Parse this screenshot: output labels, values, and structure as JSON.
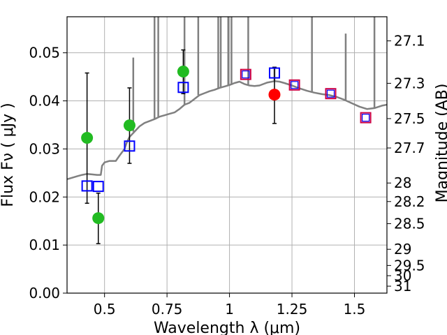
{
  "chart_data": {
    "type": "scatter",
    "xlabel": "Wavelength  λ (μm)",
    "ylabel": "Flux  Fν  ( μJy )",
    "y2label": "Magnitude (AB)",
    "xlim": [
      0.35,
      1.63
    ],
    "ylim": [
      0.0,
      0.0575
    ],
    "grid": true,
    "x_ticks": [
      {
        "value": 0.5,
        "label": "0.5"
      },
      {
        "value": 0.75,
        "label": "0.75"
      },
      {
        "value": 1.0,
        "label": "1"
      },
      {
        "value": 1.25,
        "label": "1.25"
      },
      {
        "value": 1.5,
        "label": "1.5"
      }
    ],
    "y_ticks": [
      {
        "value": 0.0,
        "label": "0.00"
      },
      {
        "value": 0.01,
        "label": "0.01"
      },
      {
        "value": 0.02,
        "label": "0.02"
      },
      {
        "value": 0.03,
        "label": "0.03"
      },
      {
        "value": 0.04,
        "label": "0.04"
      },
      {
        "value": 0.05,
        "label": "0.05"
      }
    ],
    "y2_ticks": [
      {
        "mag": 27.1,
        "label": "27.1"
      },
      {
        "mag": 27.3,
        "label": "27.3"
      },
      {
        "mag": 27.5,
        "label": "27.5"
      },
      {
        "mag": 27.7,
        "label": "27.7"
      },
      {
        "mag": 28.0,
        "label": "28"
      },
      {
        "mag": 28.2,
        "label": "28.2"
      },
      {
        "mag": 28.5,
        "label": "28.5"
      },
      {
        "mag": 29.0,
        "label": "29"
      },
      {
        "mag": 29.5,
        "label": "29.5"
      },
      {
        "mag": 30.0,
        "label": "30"
      },
      {
        "mag": 31.0,
        "label": "31"
      }
    ],
    "series": [
      {
        "kind": "line",
        "color": "#808080",
        "points": [
          [
            0.35,
            0.0237
          ],
          [
            0.37,
            0.024
          ],
          [
            0.39,
            0.0243
          ],
          [
            0.41,
            0.0246
          ],
          [
            0.43,
            0.0248
          ],
          [
            0.45,
            0.0247
          ],
          [
            0.47,
            0.0246
          ],
          [
            0.485,
            0.0246
          ],
          [
            0.49,
            0.0265
          ],
          [
            0.5,
            0.0272
          ],
          [
            0.52,
            0.0275
          ],
          [
            0.545,
            0.0275
          ],
          [
            0.56,
            0.0286
          ],
          [
            0.58,
            0.03
          ],
          [
            0.59,
            0.0315
          ],
          [
            0.6,
            0.0325
          ],
          [
            0.62,
            0.0336
          ],
          [
            0.64,
            0.0347
          ],
          [
            0.66,
            0.0354
          ],
          [
            0.68,
            0.0358
          ],
          [
            0.7,
            0.0362
          ],
          [
            0.72,
            0.0367
          ],
          [
            0.74,
            0.037
          ],
          [
            0.76,
            0.0373
          ],
          [
            0.78,
            0.0376
          ],
          [
            0.8,
            0.0383
          ],
          [
            0.82,
            0.0392
          ],
          [
            0.84,
            0.0396
          ],
          [
            0.86,
            0.0404
          ],
          [
            0.88,
            0.0412
          ],
          [
            0.9,
            0.0416
          ],
          [
            0.92,
            0.042
          ],
          [
            0.94,
            0.0423
          ],
          [
            0.96,
            0.0427
          ],
          [
            0.98,
            0.043
          ],
          [
            1.0,
            0.0433
          ],
          [
            1.02,
            0.0437
          ],
          [
            1.04,
            0.044
          ],
          [
            1.06,
            0.0435
          ],
          [
            1.08,
            0.0432
          ],
          [
            1.1,
            0.0431
          ],
          [
            1.12,
            0.0432
          ],
          [
            1.15,
            0.0438
          ],
          [
            1.18,
            0.0441
          ],
          [
            1.2,
            0.044
          ],
          [
            1.22,
            0.0437
          ],
          [
            1.25,
            0.0432
          ],
          [
            1.28,
            0.0426
          ],
          [
            1.31,
            0.0421
          ],
          [
            1.34,
            0.0417
          ],
          [
            1.37,
            0.0414
          ],
          [
            1.4,
            0.0412
          ],
          [
            1.43,
            0.0408
          ],
          [
            1.46,
            0.0402
          ],
          [
            1.49,
            0.0395
          ],
          [
            1.52,
            0.0388
          ],
          [
            1.55,
            0.0383
          ],
          [
            1.58,
            0.0385
          ],
          [
            1.61,
            0.039
          ],
          [
            1.63,
            0.0392
          ]
        ],
        "spikes": [
          [
            0.615,
            0.049
          ],
          [
            0.7,
            0.0575
          ],
          [
            0.715,
            0.0575
          ],
          [
            0.82,
            0.0575
          ],
          [
            0.875,
            0.0575
          ],
          [
            0.955,
            0.0575
          ],
          [
            0.965,
            0.0575
          ],
          [
            0.995,
            0.0575
          ],
          [
            1.008,
            0.0575
          ],
          [
            1.075,
            0.0575
          ],
          [
            1.18,
            0.047
          ],
          [
            1.33,
            0.0575
          ],
          [
            1.465,
            0.054
          ],
          [
            1.58,
            0.0575
          ]
        ]
      },
      {
        "kind": "errorbar",
        "color": "#000000",
        "points": [
          {
            "x": 0.43,
            "low": 0.0187,
            "high": 0.0458
          },
          {
            "x": 0.475,
            "low": 0.0103,
            "high": 0.0208
          },
          {
            "x": 0.6,
            "low": 0.027,
            "high": 0.0427
          },
          {
            "x": 0.815,
            "low": 0.0415,
            "high": 0.0506
          },
          {
            "x": 1.18,
            "low": 0.0353,
            "high": 0.047
          }
        ]
      },
      {
        "kind": "markers",
        "marker": "circle",
        "color": "#22bb22",
        "points": [
          [
            0.43,
            0.0323
          ],
          [
            0.475,
            0.0156
          ],
          [
            0.6,
            0.0349
          ],
          [
            0.815,
            0.0461
          ]
        ]
      },
      {
        "kind": "markers",
        "marker": "circle",
        "color": "#ff0000",
        "points": [
          [
            1.18,
            0.0413
          ]
        ]
      },
      {
        "kind": "markers",
        "marker": "square-open",
        "color": "#0000ff",
        "points": [
          [
            0.43,
            0.0223
          ],
          [
            0.475,
            0.0222
          ],
          [
            0.6,
            0.0306
          ],
          [
            0.815,
            0.0428
          ],
          [
            1.18,
            0.0458
          ]
        ]
      },
      {
        "kind": "markers",
        "marker": "square-open",
        "color": "#cc0044",
        "inner_color": "#0000ff",
        "points": [
          [
            1.065,
            0.0455
          ],
          [
            1.26,
            0.0433
          ],
          [
            1.405,
            0.0415
          ],
          [
            1.545,
            0.0365
          ]
        ]
      }
    ]
  }
}
